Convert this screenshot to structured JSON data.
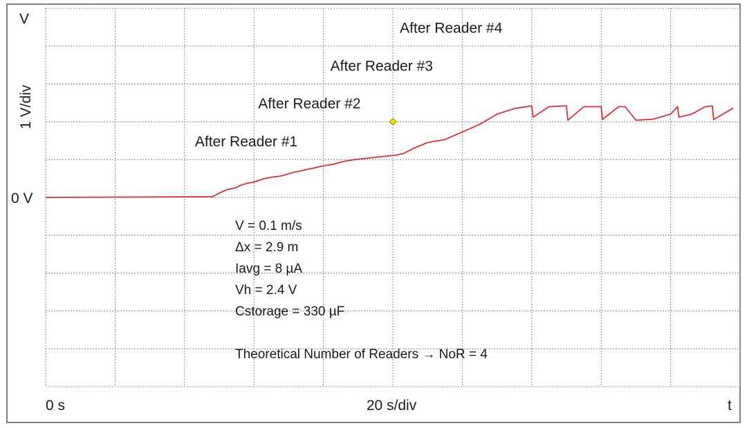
{
  "chart_data": {
    "type": "line",
    "title": "",
    "xlabel": "20 s/div",
    "ylabel": "1 V/div",
    "y_unit_label": "V",
    "y_zero_label": "0 V",
    "x_start_label": "0 s",
    "x_end_label": "t",
    "grid": true,
    "xlim": [
      0,
      200
    ],
    "ylim": [
      -5,
      5
    ],
    "series": [
      {
        "color": "#e03030",
        "x": [
          0,
          48.0,
          50.1,
          52.1,
          54.9,
          56.1,
          58.2,
          59.8,
          61.1,
          63.1,
          65.4,
          67.5,
          69.1,
          71.3,
          73.3,
          75.3,
          77.4,
          79.2,
          81.0,
          83.0,
          85.0,
          87.0,
          89.0,
          91.0,
          93.0,
          95.0,
          97.0,
          99.0,
          101.0,
          103.0,
          106.0,
          110.0,
          115.0,
          120.0,
          125.0,
          130.0,
          135.0,
          140.0,
          140.4,
          145.0,
          150.0,
          150.4,
          155.0,
          160.0,
          160.4,
          165.0,
          166.9,
          170.0,
          175.0,
          180.0,
          182.0,
          182.4,
          186.0,
          190.0,
          192.0,
          192.4,
          198.0
        ],
        "y": [
          0,
          0.02,
          0.12,
          0.2,
          0.26,
          0.32,
          0.38,
          0.4,
          0.44,
          0.5,
          0.54,
          0.56,
          0.6,
          0.66,
          0.7,
          0.74,
          0.78,
          0.82,
          0.85,
          0.88,
          0.93,
          0.97,
          1.0,
          1.02,
          1.04,
          1.06,
          1.08,
          1.1,
          1.12,
          1.16,
          1.3,
          1.45,
          1.53,
          1.73,
          1.93,
          2.2,
          2.35,
          2.42,
          2.12,
          2.4,
          2.42,
          2.04,
          2.4,
          2.4,
          2.06,
          2.4,
          2.4,
          2.04,
          2.07,
          2.2,
          2.4,
          2.12,
          2.2,
          2.4,
          2.42,
          2.06,
          2.36
        ]
      }
    ],
    "marker": {
      "x": 100,
      "y": 2.0,
      "color": "#e8e000"
    },
    "annotations": [
      {
        "text": "After Reader #1",
        "x": 43.0,
        "y": 1.35
      },
      {
        "text": "After Reader #2",
        "x": 61.2,
        "y": 2.35
      },
      {
        "text": "After Reader #3",
        "x": 82.0,
        "y": 3.35
      },
      {
        "text": "After Reader #4",
        "x": 102.0,
        "y": 4.35
      }
    ],
    "parameters": [
      "V = 0.1 m/s",
      "Δx = 2.9 m",
      "Iavg = 8 µA",
      "Vh = 2.4 V",
      "Cstorage = 330 µF",
      "",
      "Theoretical Number of Readers → NoR = 4"
    ]
  }
}
